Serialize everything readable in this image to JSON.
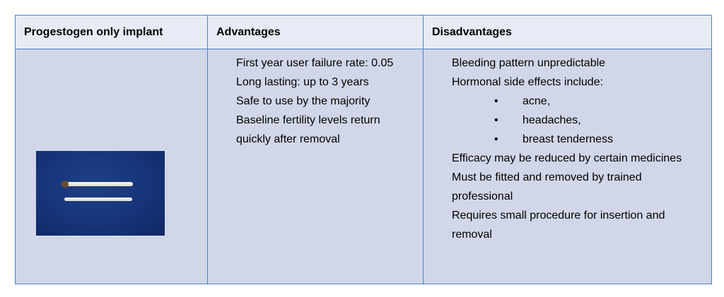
{
  "table": {
    "headers": [
      "Progestogen only implant",
      "Advantages",
      "Disadvantages"
    ],
    "advantages": [
      "First year user failure rate: 0.05",
      "Long lasting: up to 3 years",
      "Safe to use by the majority",
      "Baseline fertility levels return quickly after removal"
    ],
    "disadvantages": {
      "items_before_sub": [
        "Bleeding pattern unpredictable",
        "Hormonal side effects include:"
      ],
      "sub_items": [
        "acne,",
        "headaches,",
        "breast tenderness"
      ],
      "items_after_sub": [
        "Efficacy may be reduced by certain medicines",
        "Must be fitted and removed by trained professional",
        "Requires small procedure for insertion and removal"
      ]
    },
    "bullet_glyph": "•"
  },
  "colors": {
    "border": "#4f7ec8",
    "header_bg": "#e8ebf5",
    "body_bg": "#d1d7e8",
    "image_bg": "#17347a"
  }
}
